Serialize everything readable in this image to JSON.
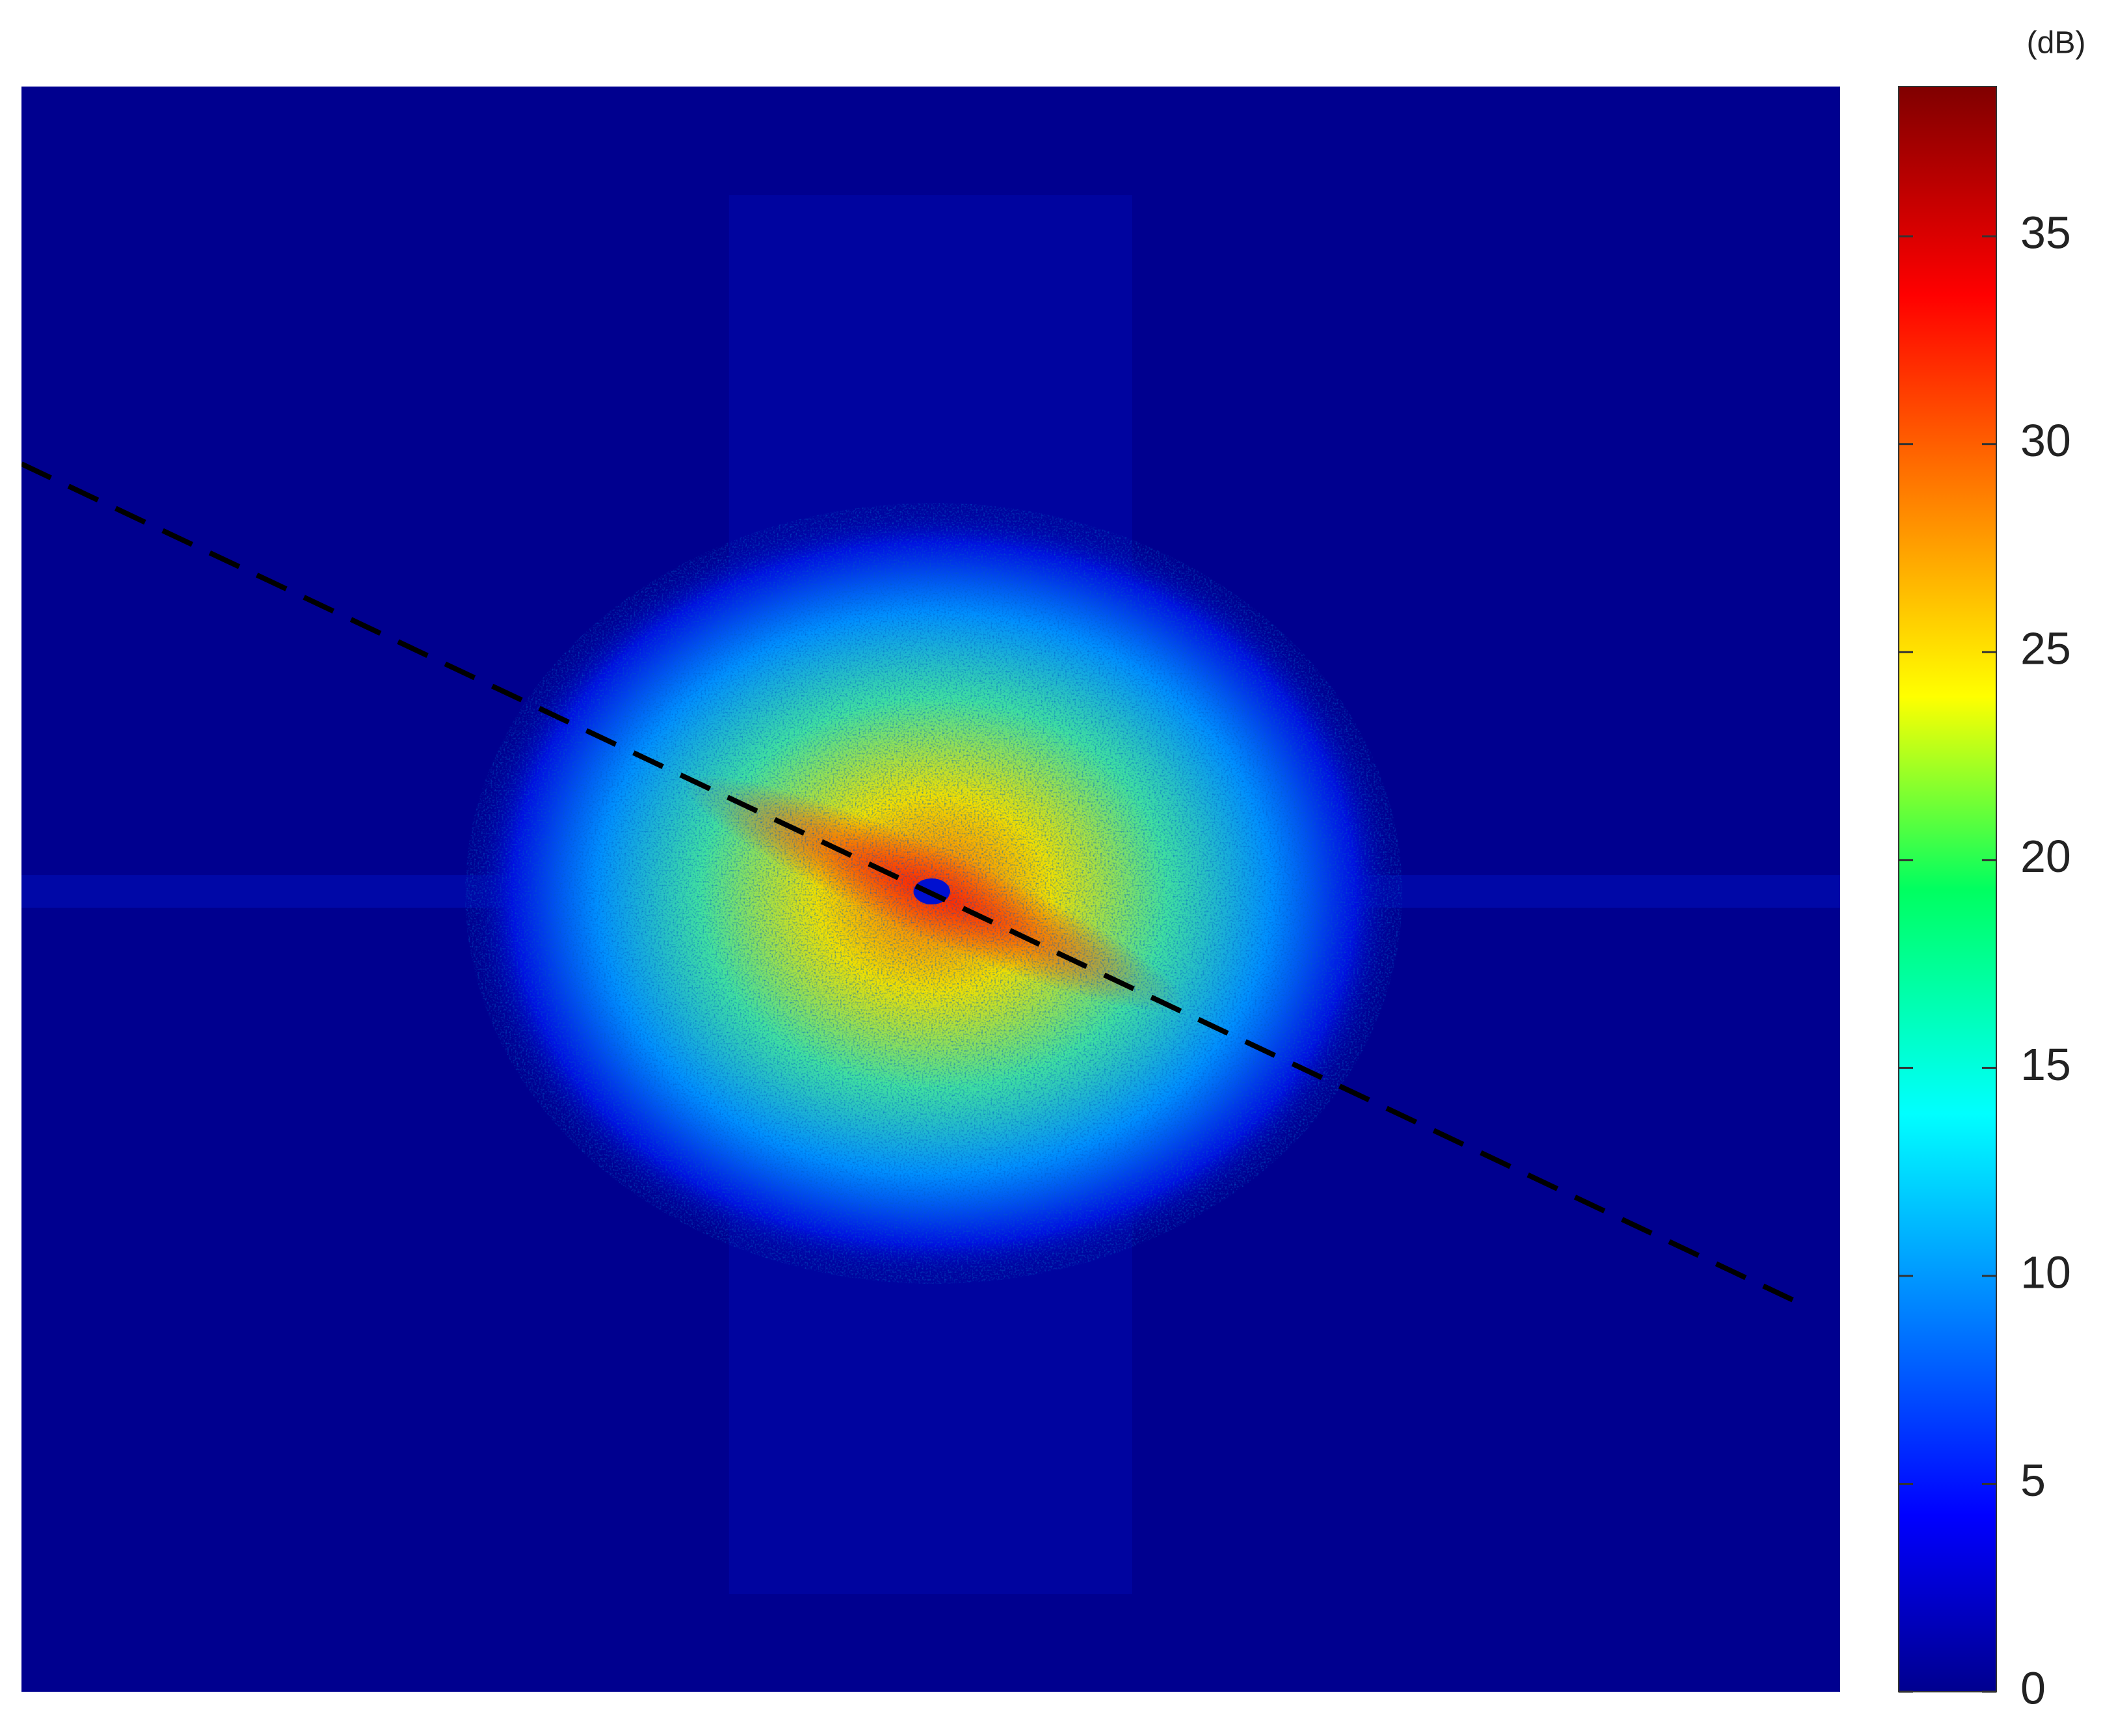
{
  "chart_data": {
    "type": "heatmap",
    "colorbar": {
      "label": "(dB)",
      "ylim": [
        0,
        38.6
      ],
      "yticks": [
        0,
        5,
        10,
        15,
        20,
        25,
        30,
        35
      ]
    }
  }
}
